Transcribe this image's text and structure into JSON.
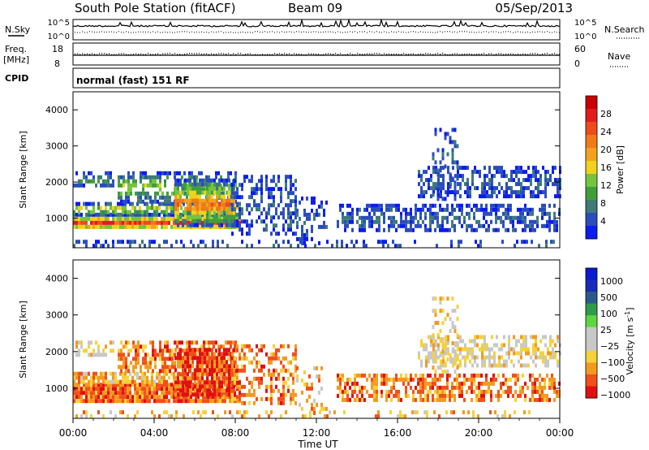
{
  "header": {
    "station": "South Pole Station (fitACF)",
    "beam": "Beam 09",
    "date": "05/Sep/2013"
  },
  "left_labels": {
    "nsky": "N.Sky",
    "freq": "Freq.",
    "mhz": "[MHz]",
    "cpid": "CPID"
  },
  "right_labels": {
    "nsearch": "N.Search",
    "nave": "Nave"
  },
  "cpid_text": "normal (fast) 151 RF",
  "colors": {
    "power": [
      "#0a1cf0",
      "#2a4dbd",
      "#3d7a78",
      "#3f9e3a",
      "#74c43d",
      "#f0d21e",
      "#f2a21e",
      "#f07a16",
      "#ee4a1a",
      "#e21c1c",
      "#cc0000"
    ],
    "velocity": [
      "#e01010",
      "#f0501a",
      "#f39a1f",
      "#f5d23a",
      "#c8c8c8",
      "#c8c8c8",
      "#5fd53e",
      "#2e9b4a",
      "#2a5a8c",
      "#1a2ab8",
      "#0a1ad0"
    ]
  },
  "chart_data": [
    {
      "type": "line",
      "name": "noise-panel",
      "ylabel_left": [
        "10^5",
        "10^0"
      ],
      "ylabel_right": [
        "10^5",
        "10^0"
      ],
      "series": [
        {
          "name": "N.Sky"
        },
        {
          "name": "N.Search"
        }
      ]
    },
    {
      "type": "line",
      "name": "freq-panel",
      "ylabel_left": [
        "18",
        "8"
      ],
      "ylabel_right": [
        "60",
        "0"
      ],
      "series": [
        {
          "name": "Freq."
        },
        {
          "name": "Nave"
        }
      ]
    },
    {
      "type": "heatmap",
      "name": "power",
      "ylabel": "Slant Range [km]",
      "ylim": [
        180,
        4500
      ],
      "yticks": [
        "1000",
        "2000",
        "3000",
        "4000"
      ],
      "colorbar_label": "Power [dB]",
      "colorbar_ticks": [
        "4",
        "8",
        "12",
        "16",
        "20",
        "24",
        "28"
      ]
    },
    {
      "type": "heatmap",
      "name": "velocity",
      "ylabel": "Slant Range [km]",
      "ylim": [
        180,
        4500
      ],
      "yticks": [
        "1000",
        "2000",
        "3000",
        "4000"
      ],
      "colorbar_label": "Velocity [m s",
      "colorbar_exp": "-1",
      "colorbar_ticks": [
        "1000",
        "500",
        "100",
        "25",
        "−25",
        "−100",
        "−500",
        "−1000"
      ]
    }
  ],
  "xaxis": {
    "ticks": [
      "00:00",
      "04:00",
      "08:00",
      "12:00",
      "16:00",
      "20:00",
      "00:00"
    ],
    "label": "Time UT"
  }
}
